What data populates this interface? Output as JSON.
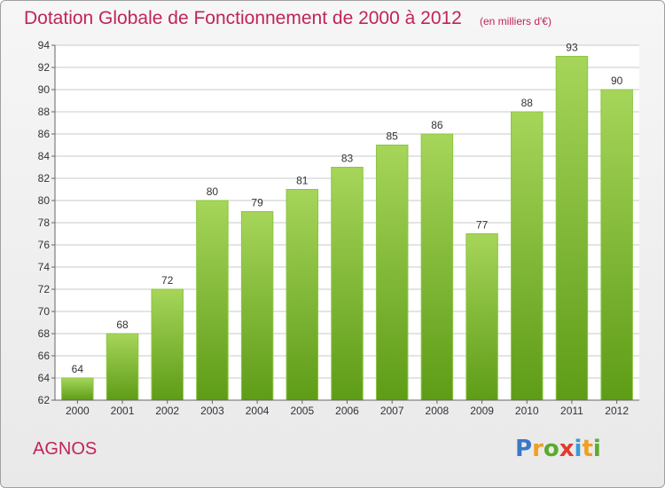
{
  "title": "Dotation Globale de Fonctionnement de 2000 à 2012",
  "subtitle": "(en milliers d'€)",
  "commune": "AGNOS",
  "logo": {
    "text": "Proxiti",
    "letters": [
      "P",
      "r",
      "o",
      "x",
      "i",
      "t",
      "i"
    ],
    "colors": [
      "#3a78c9",
      "#f0a020",
      "#5aab2e",
      "#e23b2e",
      "#3a9ad9",
      "#f0a020",
      "#5aab2e"
    ]
  },
  "colors": {
    "title": "#c0245a",
    "bar_top": "#a6d55a",
    "bar_bottom": "#5e9c17",
    "grid": "#c8c8c8",
    "axis": "#666666",
    "text": "#333333"
  },
  "chart_data": {
    "type": "bar",
    "categories": [
      "2000",
      "2001",
      "2002",
      "2003",
      "2004",
      "2005",
      "2006",
      "2007",
      "2008",
      "2009",
      "2010",
      "2011",
      "2012"
    ],
    "values": [
      64,
      68,
      72,
      80,
      79,
      81,
      83,
      85,
      86,
      77,
      88,
      93,
      90
    ],
    "data_labels": [
      "64",
      "68",
      "72",
      "80",
      "79",
      "81",
      "83",
      "85",
      "86",
      "77",
      "88",
      "93",
      "90"
    ],
    "ylim": [
      62,
      94
    ],
    "yticks": [
      62,
      64,
      66,
      68,
      70,
      72,
      74,
      76,
      78,
      80,
      82,
      84,
      86,
      88,
      90,
      92,
      94
    ],
    "ytick_labels": [
      "62",
      "64",
      "66",
      "68",
      "70",
      "72",
      "74",
      "76",
      "78",
      "80",
      "82",
      "84",
      "86",
      "88",
      "90",
      "92",
      "94"
    ],
    "grid": true,
    "legend": "none"
  }
}
